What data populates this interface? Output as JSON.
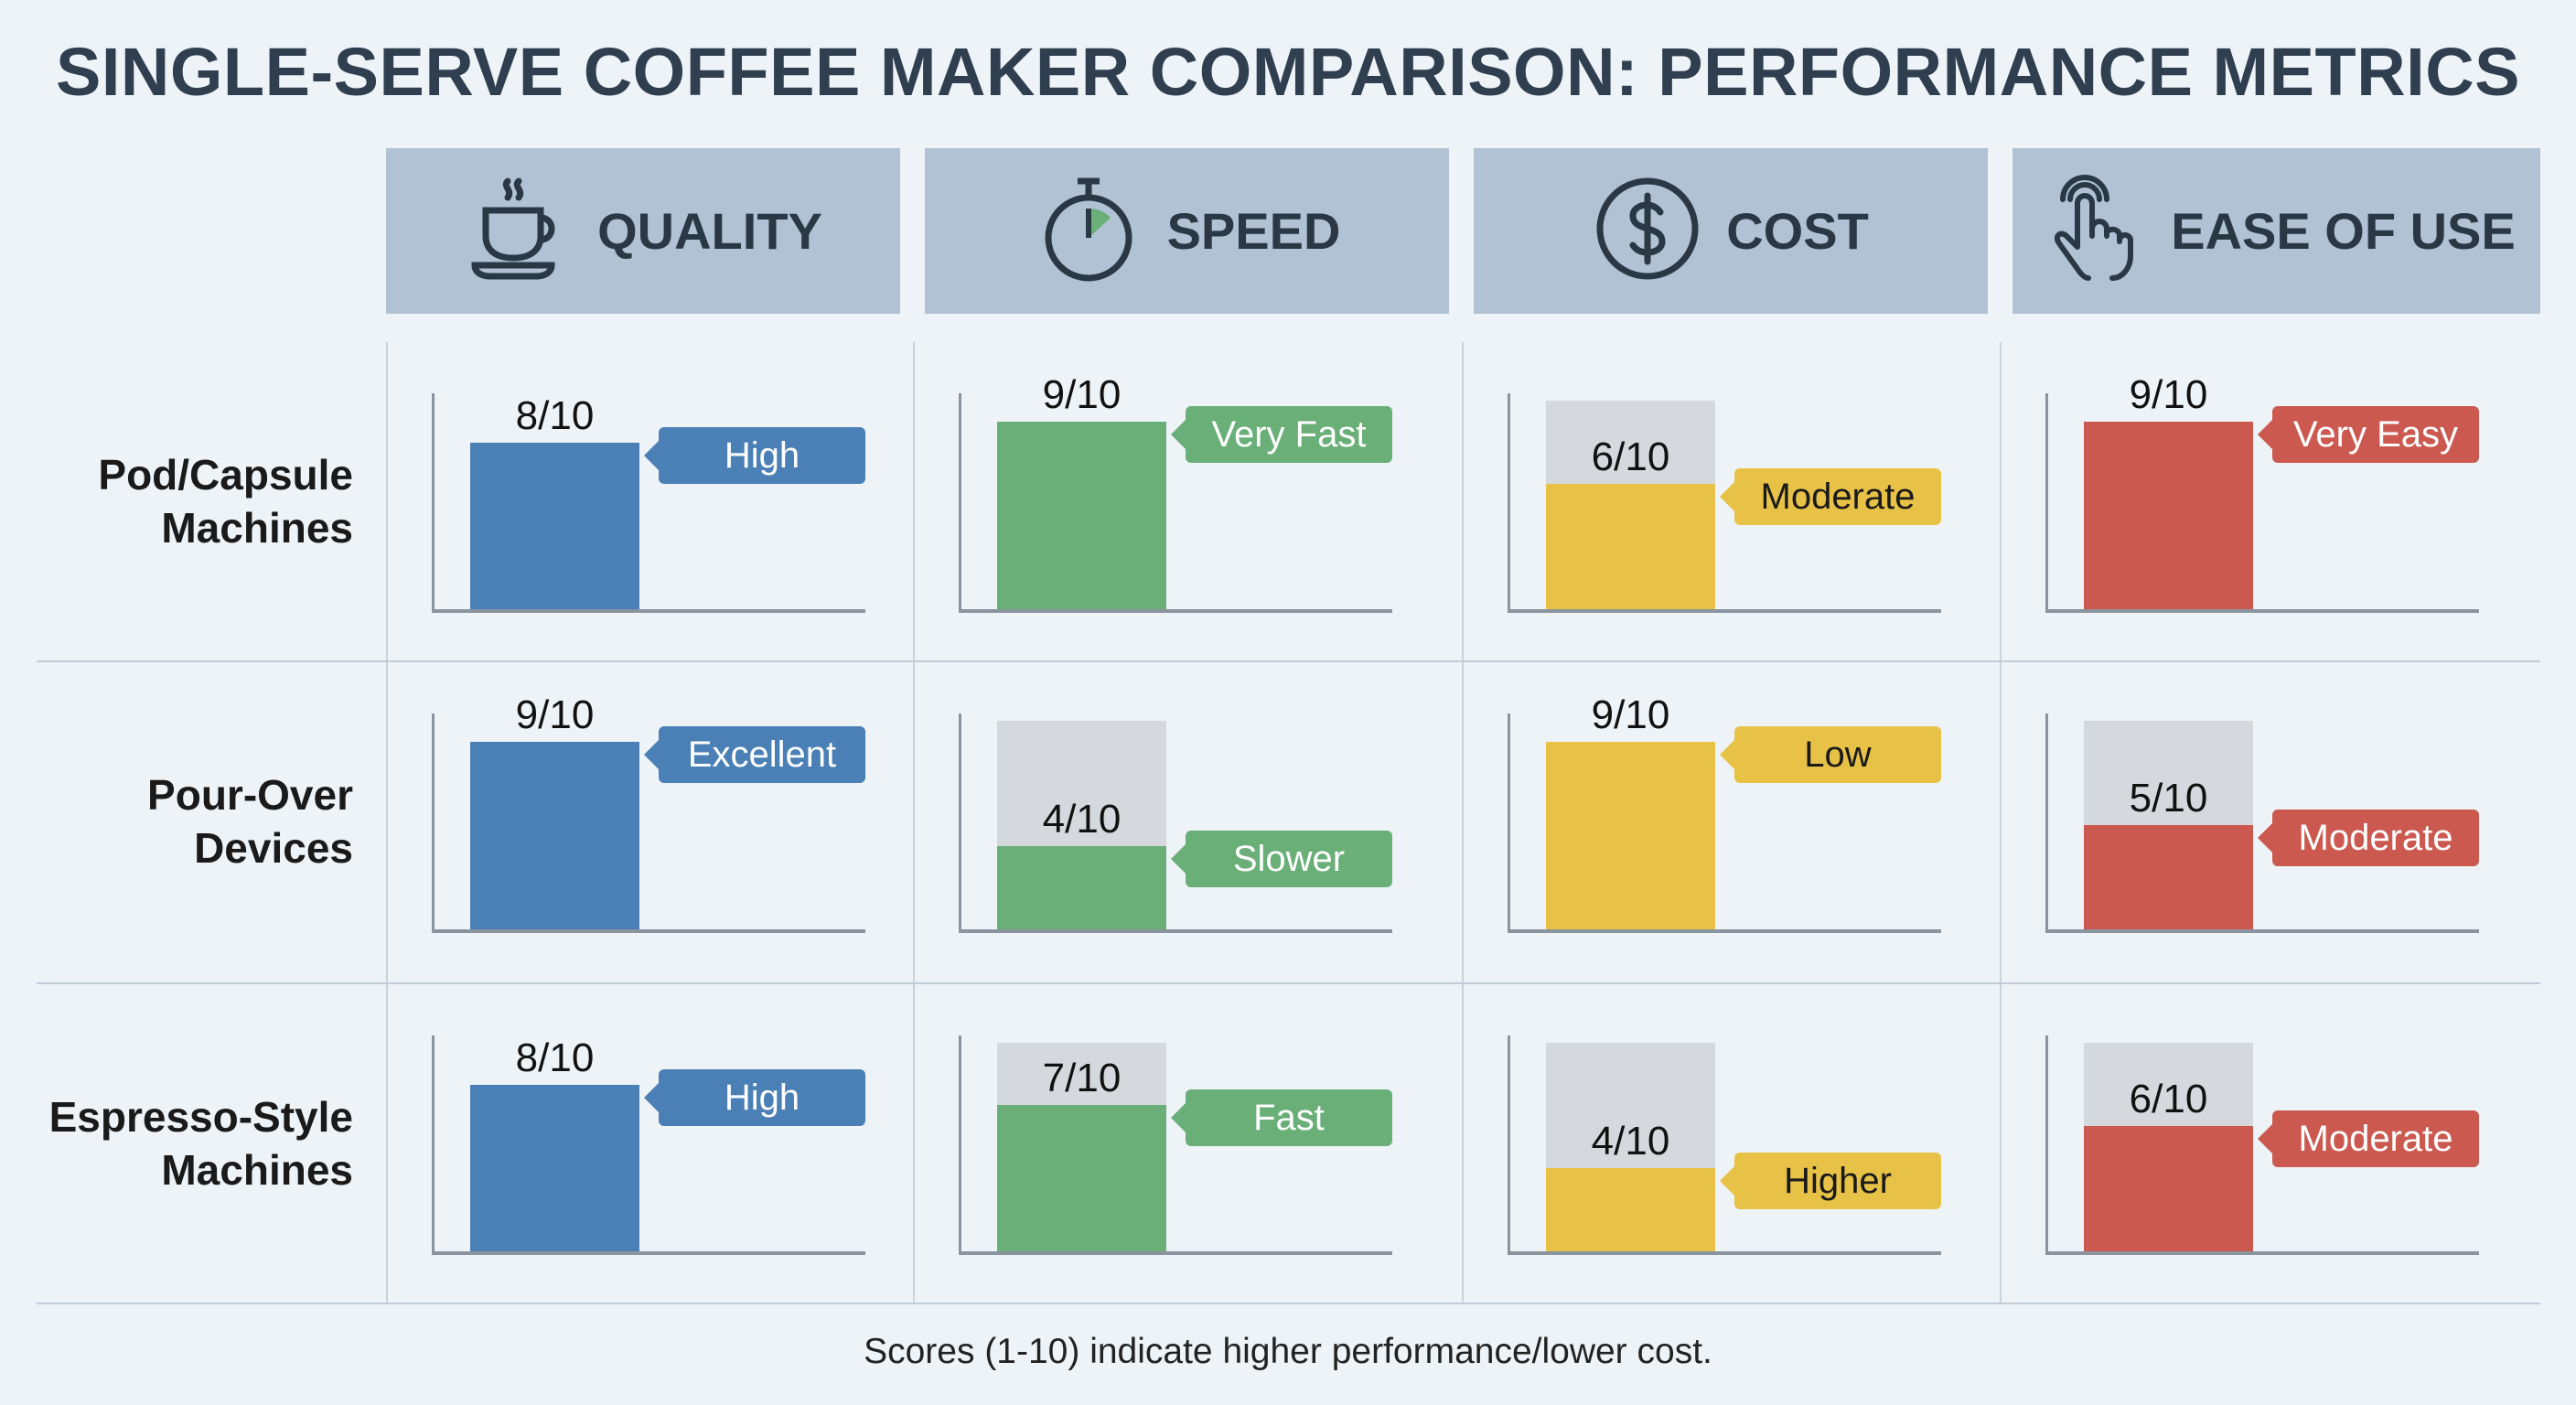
{
  "title": "SINGLE-SERVE COFFEE MAKER COMPARISON: PERFORMANCE METRICS",
  "footer": "Scores (1-10) indicate higher performance/lower cost.",
  "chart_data": {
    "type": "bar",
    "title": "SINGLE-SERVE COFFEE MAKER COMPARISON: PERFORMANCE METRICS",
    "max_score": 10,
    "metrics": [
      {
        "label": "QUALITY",
        "icon": "coffee-cup-icon",
        "color": "#4a80b6",
        "tag_text_color": "#ffffff"
      },
      {
        "label": "SPEED",
        "icon": "stopwatch-icon",
        "color": "#6aaf78",
        "tag_text_color": "#ffffff"
      },
      {
        "label": "COST",
        "icon": "dollar-coin-icon",
        "color": "#e8c247",
        "tag_text_color": "#1a1a1a"
      },
      {
        "label": "EASE OF USE",
        "icon": "touch-hand-icon",
        "color": "#cc5950",
        "tag_text_color": "#ffffff"
      }
    ],
    "rows": [
      {
        "label_lines": [
          "Pod/Capsule",
          "Machines"
        ],
        "values": [
          8,
          9,
          6,
          9
        ],
        "score_labels": [
          "8/10",
          "9/10",
          "6/10",
          "9/10"
        ],
        "ratings": [
          "High",
          "Very Fast",
          "Moderate",
          "Very Easy"
        ]
      },
      {
        "label_lines": [
          "Pour-Over",
          "Devices"
        ],
        "values": [
          9,
          4,
          9,
          5
        ],
        "score_labels": [
          "9/10",
          "4/10",
          "9/10",
          "5/10"
        ],
        "ratings": [
          "Excellent",
          "Slower",
          "Low",
          "Moderate"
        ]
      },
      {
        "label_lines": [
          "Espresso-Style",
          "Machines"
        ],
        "values": [
          8,
          7,
          4,
          6
        ],
        "score_labels": [
          "8/10",
          "7/10",
          "4/10",
          "6/10"
        ],
        "ratings": [
          "High",
          "Fast",
          "Higher",
          "Moderate"
        ]
      }
    ],
    "background_track_shown": [
      [
        false,
        false,
        true,
        false
      ],
      [
        false,
        true,
        false,
        true
      ],
      [
        false,
        true,
        true,
        true
      ]
    ],
    "track_color": "#d5d9dd"
  }
}
